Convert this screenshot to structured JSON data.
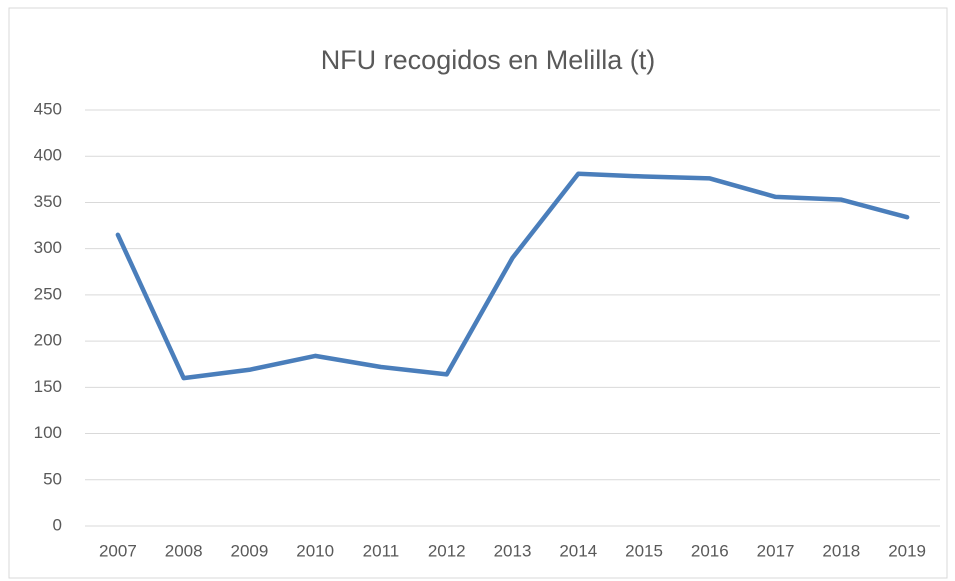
{
  "chart_data": {
    "type": "line",
    "title": "NFU recogidos en Melilla (t)",
    "categories": [
      "2007",
      "2008",
      "2009",
      "2010",
      "2011",
      "2012",
      "2013",
      "2014",
      "2015",
      "2016",
      "2017",
      "2018",
      "2019"
    ],
    "values": [
      315,
      160,
      169,
      184,
      172,
      164,
      290,
      381,
      378,
      376,
      356,
      353,
      334
    ],
    "color": "#4a7ebb",
    "ylim": [
      0,
      450
    ],
    "yticks": [
      0,
      50,
      100,
      150,
      200,
      250,
      300,
      350,
      400,
      450
    ],
    "grid": true
  }
}
